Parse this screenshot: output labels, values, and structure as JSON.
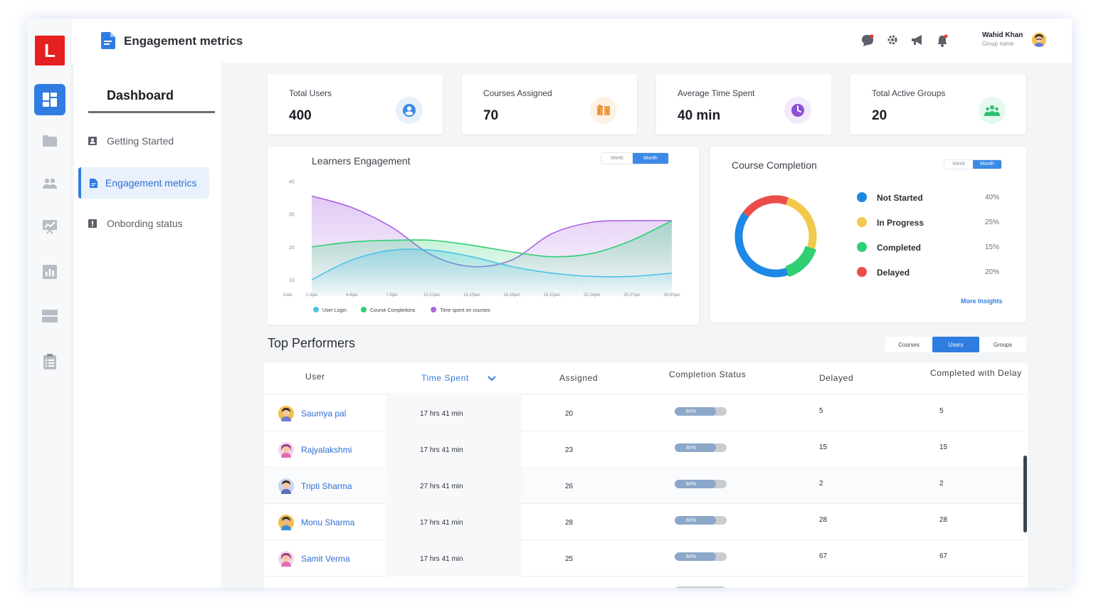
{
  "app": {
    "logo_letter": "L",
    "page_title": "Engagement metrics"
  },
  "user": {
    "name": "Wahid Khan",
    "group": "Group name"
  },
  "rail_icons": [
    "dashboard-icon",
    "folder-icon",
    "users-icon",
    "presentation-icon",
    "bar-chart-icon",
    "server-icon",
    "clipboard-icon"
  ],
  "subnav": {
    "title": "Dashboard",
    "items": [
      {
        "label": "Getting Started"
      },
      {
        "label": "Engagement metrics"
      },
      {
        "label": "Onbording status"
      }
    ]
  },
  "stats": [
    {
      "label": "Total Users",
      "value": "400",
      "color": "#3b8ae6",
      "bg": "#e8f0fb"
    },
    {
      "label": "Courses Assigned",
      "value": "70",
      "color": "#f0a04b",
      "bg": "#fdf1e4"
    },
    {
      "label": "Average Time Spent",
      "value": "40 min",
      "color": "#8e4fd6",
      "bg": "#f2e9fb"
    },
    {
      "label": "Total Active Groups",
      "value": "20",
      "color": "#2fbf71",
      "bg": "#e6f8ee"
    }
  ],
  "engagement": {
    "title": "Learners Engagement",
    "toggle": [
      "Week",
      "Month"
    ],
    "toggle_selected": "Month"
  },
  "completion": {
    "title": "Course Completion",
    "toggle": [
      "Week",
      "Month"
    ],
    "toggle_selected": "Month",
    "more_link": "More Insights"
  },
  "chart_data": [
    {
      "type": "area",
      "title": "Learners Engagement",
      "xlabel": "Date",
      "categories": [
        "1-3jan",
        "4-6jan",
        "7-9jan",
        "10-12jan",
        "13-15jan",
        "16-18jan",
        "19-21jan",
        "22-24jan",
        "25-27jan",
        "28-30jan"
      ],
      "yticks": [
        10,
        20,
        30,
        40
      ],
      "ylim": [
        5,
        41
      ],
      "series": [
        {
          "name": "User Login",
          "color": "#4cc3e6",
          "values": [
            10,
            16,
            19,
            19,
            17,
            14,
            12,
            11,
            11,
            12
          ]
        },
        {
          "name": "Course Completions",
          "color": "#2fcf72",
          "values": [
            20,
            21.5,
            22,
            22,
            20.5,
            18.5,
            17,
            18,
            22,
            28
          ]
        },
        {
          "name": "Time spent on courses",
          "color": "#a964e0",
          "values": [
            35.5,
            32,
            26,
            17.5,
            14,
            16,
            24,
            27.5,
            28,
            28
          ]
        }
      ],
      "grid": false,
      "legend_position": "bottom"
    },
    {
      "type": "pie",
      "title": "Course Completion",
      "categories": [
        "Not Started",
        "In Progress",
        "Completed",
        "Delayed"
      ],
      "values": [
        40,
        25,
        15,
        20
      ],
      "labels": [
        "40%",
        "25%",
        "15%",
        "20%"
      ],
      "colors": [
        "#1e88e5",
        "#f2c94c",
        "#2fcf72",
        "#eb4d4b"
      ],
      "legend_position": "right"
    }
  ],
  "top_performers": {
    "title": "Top Performers",
    "tabs": [
      "Courses",
      "Users",
      "Groups"
    ],
    "tab_selected": "Users",
    "columns": [
      "User",
      "Time Spent",
      "Assigned",
      "Completion Status",
      "Delayed",
      "Completed with Delay"
    ],
    "rows": [
      {
        "user": "Saumya pal",
        "time": "17 hrs 41 min",
        "assigned": "20",
        "status": "80%",
        "status_value": 0.8,
        "delayed": "5",
        "completed_delay": "5"
      },
      {
        "user": "Rajyalakshmi",
        "time": "17 hrs 41 min",
        "assigned": "23",
        "status": "80%",
        "status_value": 0.8,
        "delayed": "15",
        "completed_delay": "15"
      },
      {
        "user": "Tripti Sharma",
        "time": "27 hrs 41 min",
        "assigned": "26",
        "status": "80%",
        "status_value": 0.8,
        "delayed": "2",
        "completed_delay": "2"
      },
      {
        "user": "Monu Sharma",
        "time": "17 hrs 41 min",
        "assigned": "28",
        "status": "80%",
        "status_value": 0.8,
        "delayed": "28",
        "completed_delay": "28"
      },
      {
        "user": "Samit Verma",
        "time": "17 hrs 41 min",
        "assigned": "25",
        "status": "80%",
        "status_value": 0.8,
        "delayed": "67",
        "completed_delay": "67"
      }
    ]
  }
}
